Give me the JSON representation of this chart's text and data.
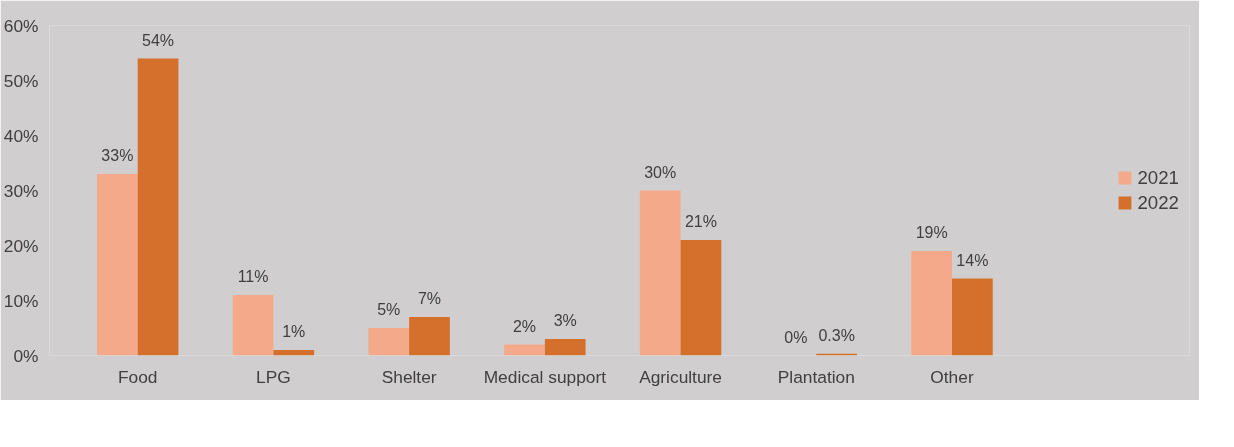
{
  "chart_data": {
    "type": "bar",
    "categories": [
      "Food",
      "LPG",
      "Shelter",
      "Medical support",
      "Agriculture",
      "Plantation",
      "Other"
    ],
    "series": [
      {
        "name": "2021",
        "color": "#f4aa8a",
        "values": [
          33,
          11,
          5,
          2,
          30,
          0,
          19
        ]
      },
      {
        "name": "2022",
        "color": "#d46f2c",
        "values": [
          54,
          1,
          7,
          3,
          21,
          0.3,
          14
        ]
      }
    ],
    "ylim": [
      0,
      60
    ],
    "yticks": [
      {
        "value": 0,
        "label": "0%"
      },
      {
        "value": 10,
        "label": "10%"
      },
      {
        "value": 20,
        "label": "20%"
      },
      {
        "value": 30,
        "label": "30%"
      },
      {
        "value": 40,
        "label": "40%"
      },
      {
        "value": 50,
        "label": "50%"
      },
      {
        "value": 60,
        "label": "60%"
      }
    ],
    "value_labels": [
      [
        "33%",
        "11%",
        "5%",
        "2%",
        "30%",
        "0%",
        "19%"
      ],
      [
        "54%",
        "1%",
        "7%",
        "3%",
        "21%",
        "0.3%",
        "14%"
      ]
    ],
    "grid": false,
    "legend": "right"
  }
}
